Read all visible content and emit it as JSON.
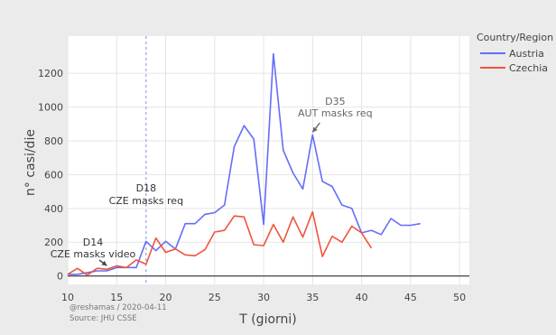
{
  "chart_data": {
    "type": "line",
    "xlabel": "T (giorni)",
    "ylabel": "n° casi/die",
    "xlim": [
      10,
      51
    ],
    "ylim": [
      -50,
      1420
    ],
    "xticks": [
      10,
      15,
      20,
      25,
      30,
      35,
      40,
      45,
      50
    ],
    "yticks": [
      0,
      200,
      400,
      600,
      800,
      1000,
      1200
    ],
    "grid": true,
    "legend": {
      "title": "Country/Region",
      "placement": "right"
    },
    "series": [
      {
        "name": "Austria",
        "color": "#636efa",
        "x": [
          10,
          11,
          12,
          13,
          14,
          15,
          16,
          17,
          18,
          19,
          20,
          21,
          22,
          23,
          24,
          25,
          26,
          27,
          28,
          29,
          30,
          31,
          32,
          33,
          34,
          35,
          36,
          37,
          38,
          39,
          40,
          41,
          42,
          43,
          44,
          45,
          46
        ],
        "y": [
          10,
          10,
          20,
          30,
          30,
          50,
          50,
          50,
          205,
          150,
          205,
          160,
          310,
          310,
          365,
          375,
          420,
          765,
          890,
          810,
          305,
          1315,
          745,
          610,
          515,
          835,
          560,
          530,
          420,
          400,
          255,
          270,
          245,
          340,
          300,
          300,
          310
        ]
      },
      {
        "name": "Czechia",
        "color": "#ef553b",
        "x": [
          10,
          11,
          12,
          13,
          14,
          15,
          16,
          17,
          18,
          19,
          20,
          21,
          22,
          23,
          24,
          25,
          26,
          27,
          28,
          29,
          30,
          31,
          32,
          33,
          34,
          35,
          36,
          37,
          38,
          39,
          40,
          41
        ],
        "y": [
          10,
          45,
          5,
          45,
          40,
          60,
          50,
          95,
          70,
          225,
          140,
          160,
          125,
          120,
          155,
          260,
          270,
          355,
          350,
          185,
          180,
          305,
          200,
          350,
          230,
          380,
          115,
          235,
          200,
          295,
          255,
          165
        ]
      }
    ],
    "annotations": [
      {
        "lines": [
          "D14",
          "CZE masks video"
        ],
        "x": 14,
        "y": 45
      },
      {
        "lines": [
          "D18",
          "CZE masks req"
        ],
        "x": 18
      },
      {
        "lines": [
          "D35",
          "AUT masks req"
        ],
        "x": 35,
        "y": 835
      }
    ],
    "vline_x": 18,
    "footnote": [
      "@reshamas / 2020-04-11",
      "Source: JHU CSSE"
    ]
  }
}
